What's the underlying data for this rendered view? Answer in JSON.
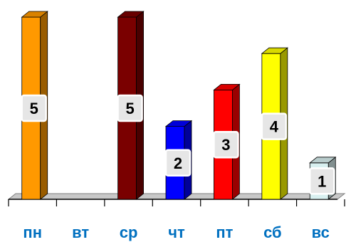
{
  "chart_data": {
    "type": "bar",
    "style": "3d",
    "categories": [
      "пн",
      "вт",
      "ср",
      "чт",
      "пт",
      "сб",
      "вс"
    ],
    "values": [
      5,
      0,
      5,
      2,
      3,
      4,
      1
    ],
    "colors": [
      "#ff9900",
      "#ff9900",
      "#7a0000",
      "#0000ff",
      "#ff0000",
      "#ffff00",
      "#d8f0f0"
    ],
    "value_labels": [
      "5",
      "",
      "5",
      "2",
      "3",
      "4",
      "1"
    ],
    "ylim": [
      0,
      5
    ],
    "grid": false,
    "legend": "none",
    "title": "",
    "xlabel": "",
    "ylabel": ""
  }
}
